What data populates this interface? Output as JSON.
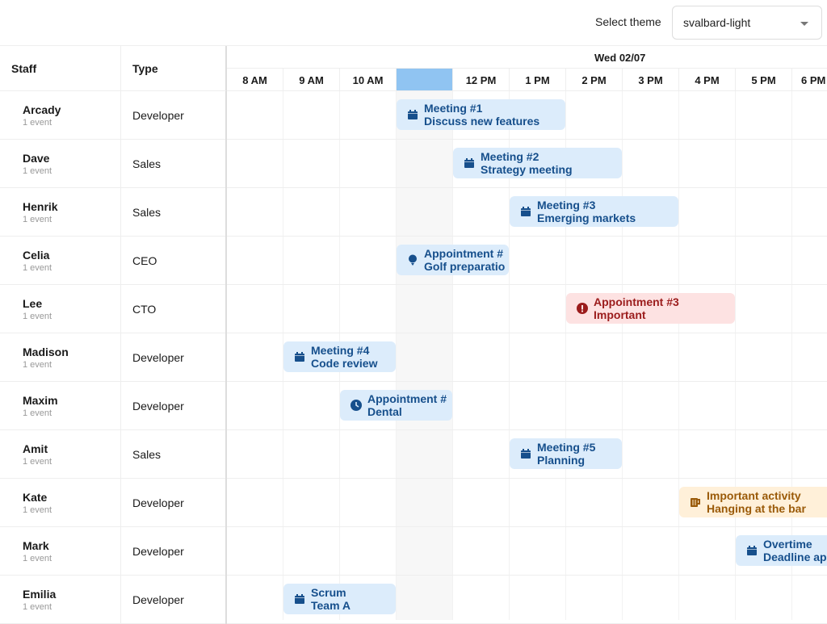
{
  "toolbar": {
    "theme_label": "Select theme",
    "theme_value": "svalbard-light"
  },
  "headers": {
    "staff": "Staff",
    "type": "Type",
    "date": "Wed 02/07"
  },
  "hours": [
    "8 AM",
    "9 AM",
    "10 AM",
    "",
    "12 PM",
    "1 PM",
    "2 PM",
    "3 PM",
    "4 PM",
    "5 PM",
    "6 PM"
  ],
  "highlighted_hour": "11 AM",
  "rows": [
    {
      "name": "Arcady",
      "count": "1 event",
      "type": "Developer",
      "event": {
        "title": "Meeting #1",
        "desc": "Discuss new features",
        "start": 11,
        "end": 14,
        "style": "blue",
        "icon": "calendar-icon"
      }
    },
    {
      "name": "Dave",
      "count": "1 event",
      "type": "Sales",
      "event": {
        "title": "Meeting #2",
        "desc": "Strategy meeting",
        "start": 12,
        "end": 15,
        "style": "blue",
        "icon": "calendar-icon"
      }
    },
    {
      "name": "Henrik",
      "count": "1 event",
      "type": "Sales",
      "event": {
        "title": "Meeting #3",
        "desc": "Emerging markets",
        "start": 13,
        "end": 16,
        "style": "blue",
        "icon": "calendar-icon"
      }
    },
    {
      "name": "Celia",
      "count": "1 event",
      "type": "CEO",
      "event": {
        "title": "Appointment #",
        "desc": "Golf preparatio",
        "start": 11,
        "end": 13,
        "style": "blue",
        "icon": "golf-icon"
      }
    },
    {
      "name": "Lee",
      "count": "1 event",
      "type": "CTO",
      "event": {
        "title": "Appointment #3",
        "desc": "Important",
        "start": 14,
        "end": 17,
        "style": "red",
        "icon": "exclamation-icon"
      }
    },
    {
      "name": "Madison",
      "count": "1 event",
      "type": "Developer",
      "event": {
        "title": "Meeting #4",
        "desc": "Code review",
        "start": 9,
        "end": 11,
        "style": "blue",
        "icon": "calendar-icon"
      }
    },
    {
      "name": "Maxim",
      "count": "1 event",
      "type": "Developer",
      "event": {
        "title": "Appointment #",
        "desc": "Dental",
        "start": 10,
        "end": 12,
        "style": "blue",
        "icon": "clock-icon"
      }
    },
    {
      "name": "Amit",
      "count": "1 event",
      "type": "Sales",
      "event": {
        "title": "Meeting #5",
        "desc": "Planning",
        "start": 13,
        "end": 15,
        "style": "blue",
        "icon": "calendar-icon"
      }
    },
    {
      "name": "Kate",
      "count": "1 event",
      "type": "Developer",
      "event": {
        "title": "Important activity",
        "desc": "Hanging at the bar",
        "start": 16,
        "end": 19,
        "style": "orange",
        "icon": "beer-mug-icon"
      }
    },
    {
      "name": "Mark",
      "count": "1 event",
      "type": "Developer",
      "event": {
        "title": "Overtime",
        "desc": "Deadline app",
        "start": 17,
        "end": 20,
        "style": "blue",
        "icon": "calendar-icon"
      }
    },
    {
      "name": "Emilia",
      "count": "1 event",
      "type": "Developer",
      "event": {
        "title": "Scrum",
        "desc": "Team A",
        "start": 9,
        "end": 11,
        "style": "blue",
        "icon": "calendar-icon"
      }
    }
  ]
}
